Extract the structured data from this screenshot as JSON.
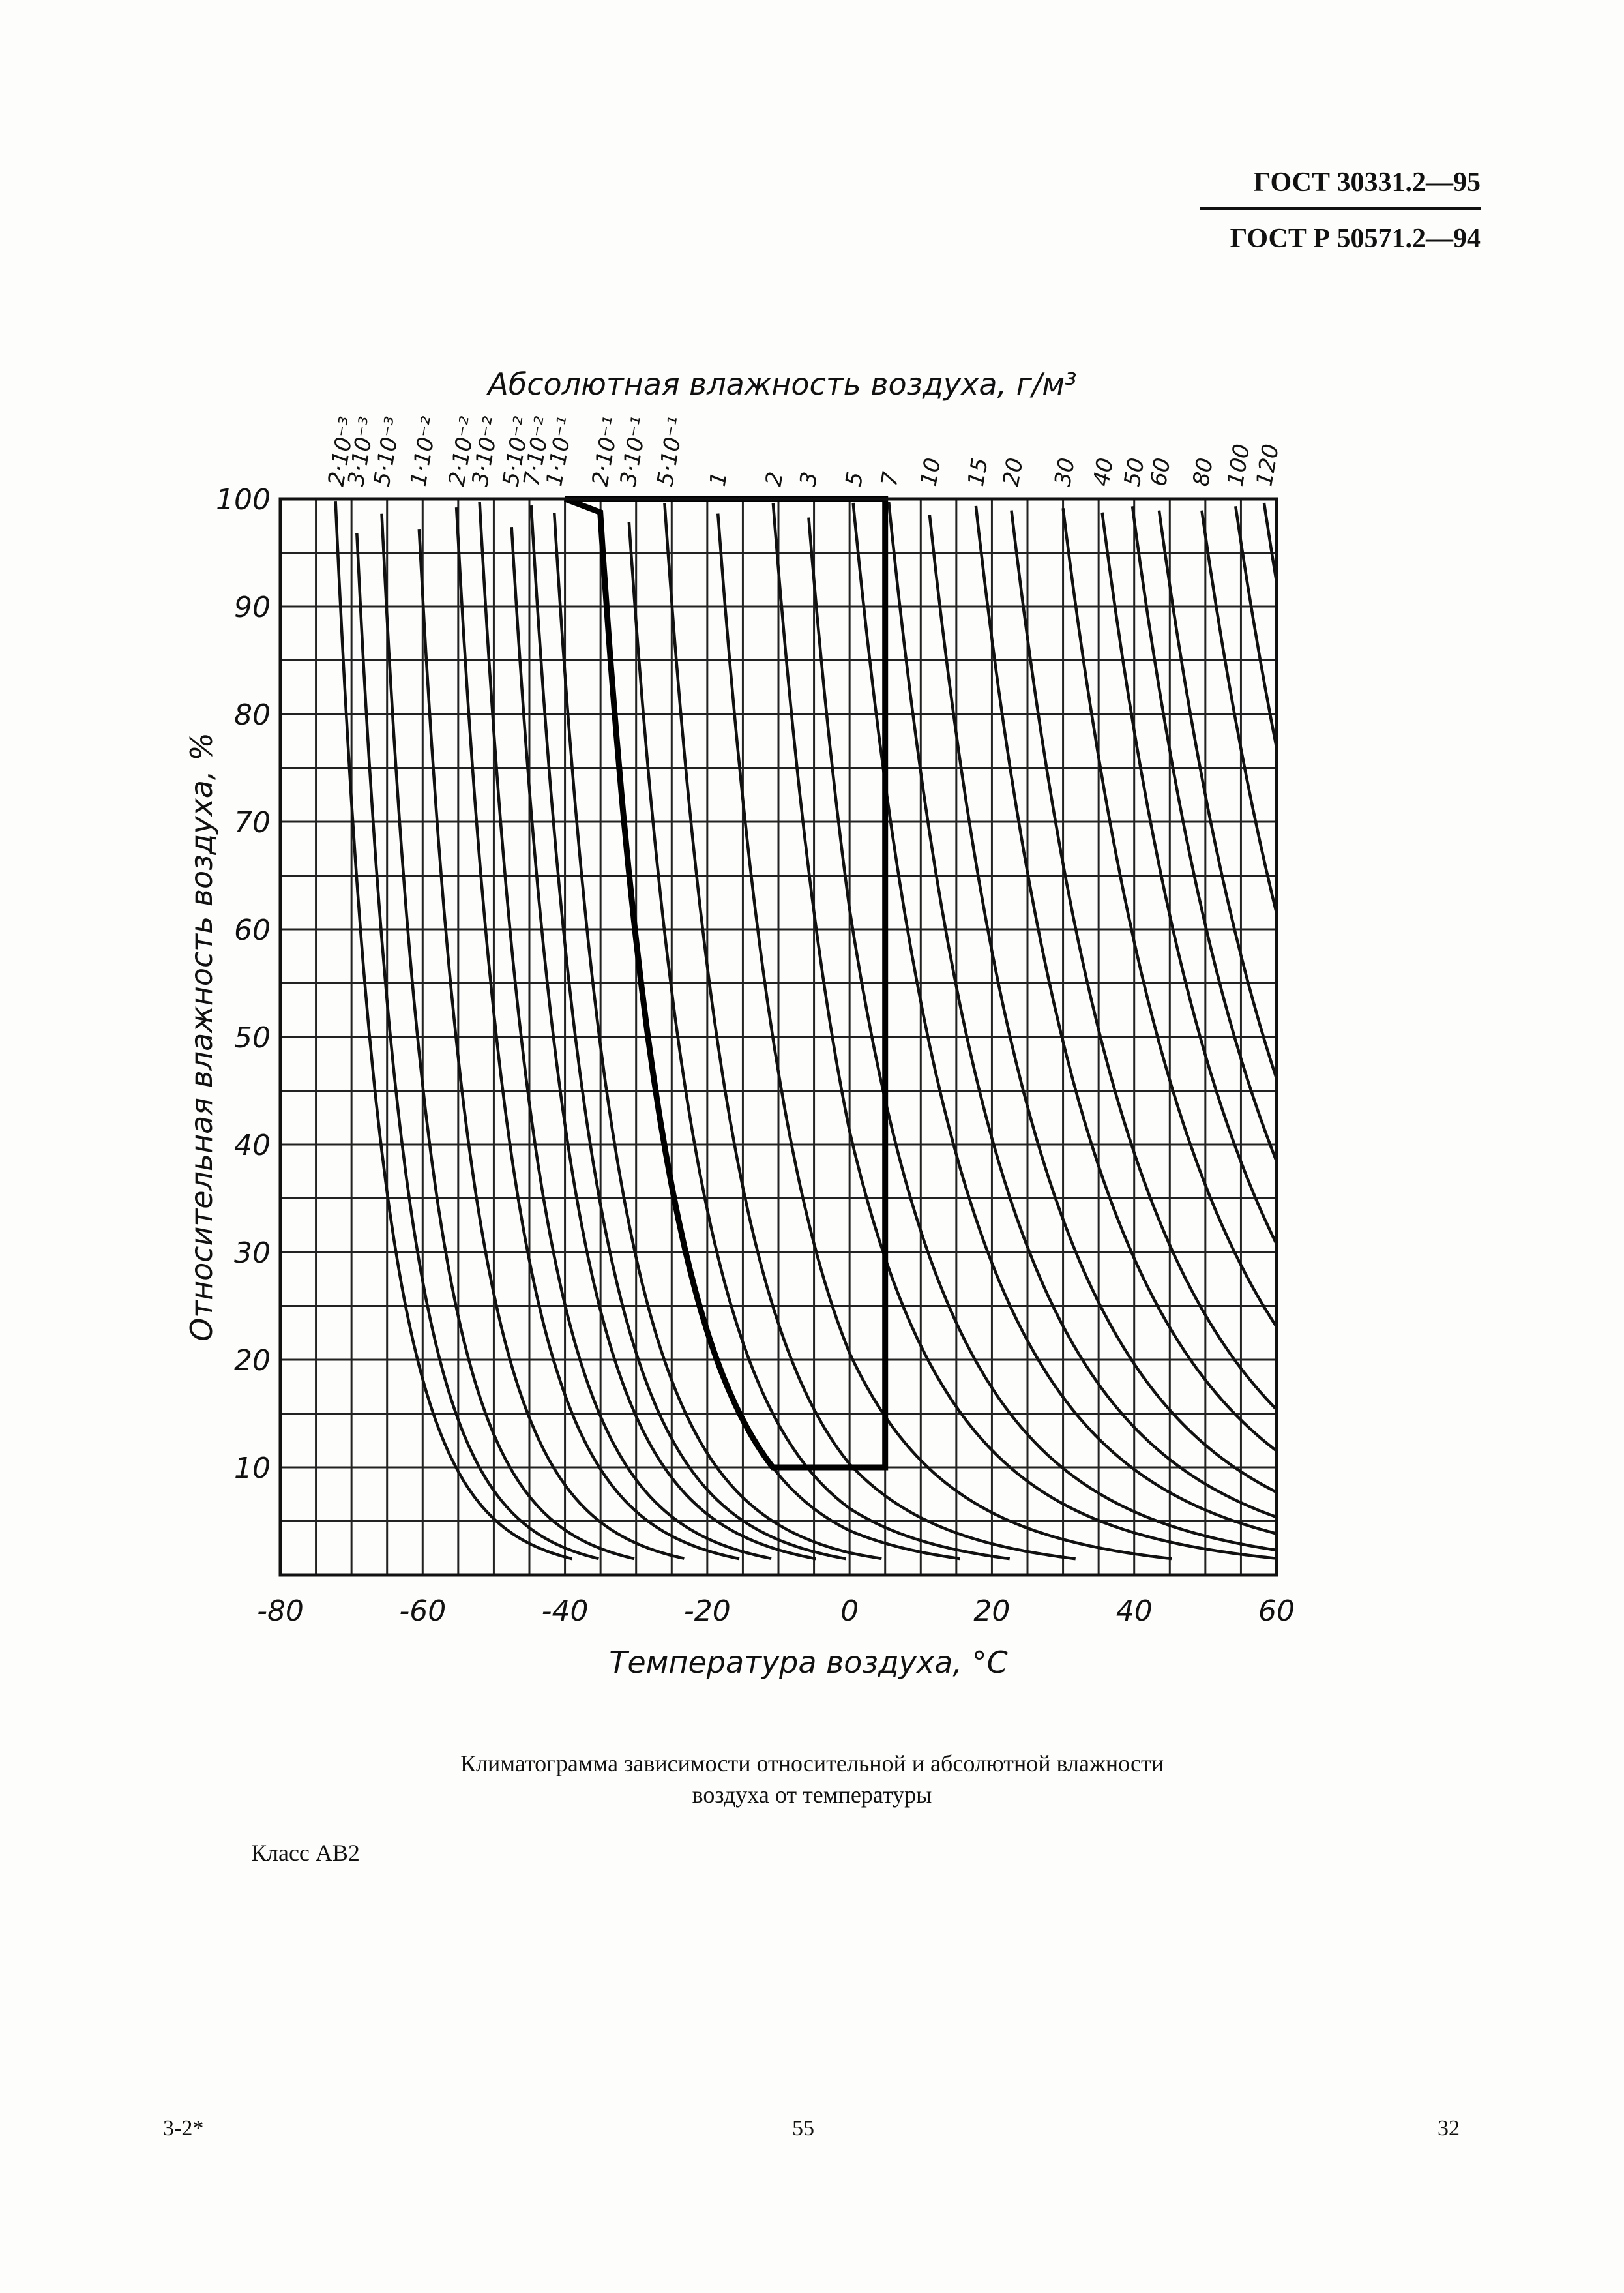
{
  "header": {
    "standard_1": "ГОСТ 30331.2—95",
    "standard_2": "ГОСТ Р 50571.2—94"
  },
  "chart_data": {
    "type": "line",
    "title": "",
    "top_axis_label": "Абсолютная влажность воздуха, г/м³",
    "xlabel": "Температура воздуха, °С",
    "ylabel": "Относительная влажность воздуха, %",
    "xlim": [
      -80,
      60
    ],
    "ylim": [
      0,
      100
    ],
    "grid": true,
    "x_ticks": [
      "-80",
      "-60",
      "-40",
      "-20",
      "0",
      "20",
      "40",
      "60"
    ],
    "y_ticks": [
      "10",
      "20",
      "30",
      "40",
      "50",
      "60",
      "70",
      "80",
      "90",
      "100"
    ],
    "series": [
      {
        "name": "2·10⁻³",
        "abs_humidity": 0.002
      },
      {
        "name": "3·10⁻³",
        "abs_humidity": 0.003
      },
      {
        "name": "5·10⁻³",
        "abs_humidity": 0.005
      },
      {
        "name": "1·10⁻²",
        "abs_humidity": 0.01
      },
      {
        "name": "2·10⁻²",
        "abs_humidity": 0.02
      },
      {
        "name": "3·10⁻²",
        "abs_humidity": 0.03
      },
      {
        "name": "5·10⁻²",
        "abs_humidity": 0.05
      },
      {
        "name": "7·10⁻²",
        "abs_humidity": 0.07
      },
      {
        "name": "1·10⁻¹",
        "abs_humidity": 0.1
      },
      {
        "name": "2·10⁻¹",
        "abs_humidity": 0.2
      },
      {
        "name": "3·10⁻¹",
        "abs_humidity": 0.3
      },
      {
        "name": "5·10⁻¹",
        "abs_humidity": 0.5
      },
      {
        "name": "1",
        "abs_humidity": 1
      },
      {
        "name": "2",
        "abs_humidity": 2
      },
      {
        "name": "3",
        "abs_humidity": 3
      },
      {
        "name": "5",
        "abs_humidity": 5
      },
      {
        "name": "7",
        "abs_humidity": 7
      },
      {
        "name": "10",
        "abs_humidity": 10
      },
      {
        "name": "15",
        "abs_humidity": 15
      },
      {
        "name": "20",
        "abs_humidity": 20
      },
      {
        "name": "30",
        "abs_humidity": 30
      },
      {
        "name": "40",
        "abs_humidity": 40
      },
      {
        "name": "50",
        "abs_humidity": 50
      },
      {
        "name": "60",
        "abs_humidity": 60
      },
      {
        "name": "80",
        "abs_humidity": 80
      },
      {
        "name": "100",
        "abs_humidity": 100
      },
      {
        "name": "120",
        "abs_humidity": 120
      }
    ],
    "highlight_region": {
      "temperature_range": [
        -40,
        5
      ],
      "relative_humidity_range": [
        10,
        100
      ],
      "bounded_by_abs_humidity": [
        0.2,
        7
      ]
    }
  },
  "caption": {
    "line1": "Климатограмма зависимости относительной и абсолютной влажности",
    "line2": "воздуха от температуры"
  },
  "class_label": "Класс АВ2",
  "footer": {
    "left": "3-2*",
    "center": "55",
    "right": "32"
  }
}
